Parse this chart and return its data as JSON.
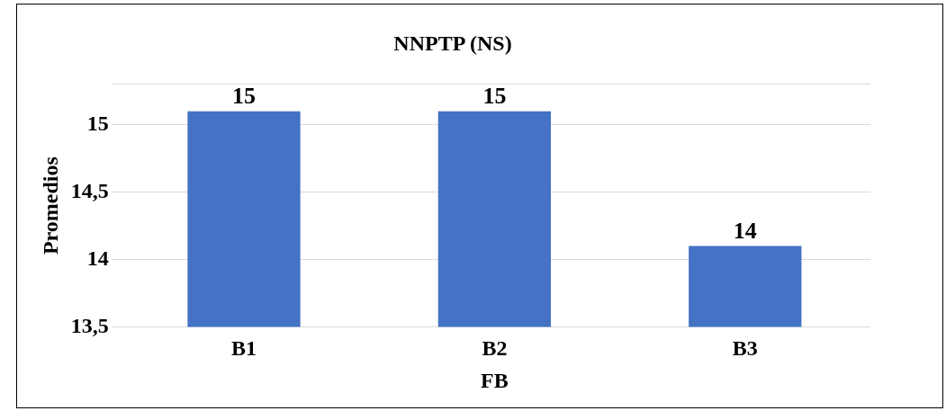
{
  "chart_data": {
    "type": "bar",
    "title": "NNPTP (NS)",
    "xlabel": "FB",
    "ylabel": "Promedios",
    "categories": [
      "B1",
      "B2",
      "B3"
    ],
    "values": [
      15.1,
      15.1,
      14.1
    ],
    "value_labels": [
      "15",
      "15",
      "14"
    ],
    "color": "#4472c4",
    "ylim": [
      13.5,
      15.3
    ],
    "yticks": [
      {
        "value": 13.5,
        "label": "13,5"
      },
      {
        "value": 14,
        "label": "14"
      },
      {
        "value": 14.5,
        "label": "14,5"
      },
      {
        "value": 15,
        "label": "15"
      }
    ],
    "grid": "y",
    "legend": false
  }
}
